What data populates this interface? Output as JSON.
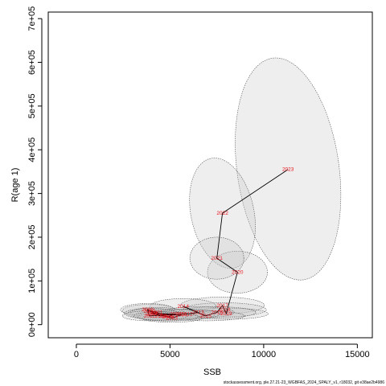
{
  "chart_data": {
    "type": "scatter",
    "xlabel": "SSB",
    "ylabel": "R(age 1)",
    "xlim": [
      -1500,
      15800
    ],
    "ylim": [
      -30000,
      715000
    ],
    "x_ticks": [
      0,
      5000,
      10000,
      15000
    ],
    "x_tick_labels": [
      "0",
      "5000",
      "10000",
      "15000"
    ],
    "y_ticks": [
      0,
      100000,
      200000,
      300000,
      400000,
      500000,
      600000,
      700000
    ],
    "y_tick_labels": [
      "0e+00",
      "1e+05",
      "2e+05",
      "3e+05",
      "4e+05",
      "5e+05",
      "6e+05",
      "7e+05"
    ],
    "points": [
      {
        "year": "2000",
        "ssb": 3900,
        "r": 32000,
        "sd_ssb": 900,
        "sd_r": 9000
      },
      {
        "year": "2001",
        "ssb": 4300,
        "r": 28000,
        "sd_ssb": 900,
        "sd_r": 7000
      },
      {
        "year": "2002",
        "ssb": 4700,
        "r": 20000,
        "sd_ssb": 900,
        "sd_r": 7000
      },
      {
        "year": "2003",
        "ssb": 5100,
        "r": 15000,
        "sd_ssb": 1000,
        "sd_r": 6000
      },
      {
        "year": "2004",
        "ssb": 5600,
        "r": 22000,
        "sd_ssb": 1100,
        "sd_r": 7000
      },
      {
        "year": "2005",
        "ssb": 4100,
        "r": 24000,
        "sd_ssb": 900,
        "sd_r": 7000
      },
      {
        "year": "2006",
        "ssb": 4900,
        "r": 18000,
        "sd_ssb": 1000,
        "sd_r": 6000
      },
      {
        "year": "2007",
        "ssb": 5300,
        "r": 24000,
        "sd_ssb": 1000,
        "sd_r": 7000
      },
      {
        "year": "2008",
        "ssb": 4000,
        "r": 26000,
        "sd_ssb": 900,
        "sd_r": 7000
      },
      {
        "year": "2009",
        "ssb": 4500,
        "r": 20000,
        "sd_ssb": 900,
        "sd_r": 6000
      },
      {
        "year": "2010",
        "ssb": 3800,
        "r": 34000,
        "sd_ssb": 900,
        "sd_r": 9000
      },
      {
        "year": "2011",
        "ssb": 3900,
        "r": 20000,
        "sd_ssb": 900,
        "sd_r": 7000
      },
      {
        "year": "2012",
        "ssb": 5900,
        "r": 24000,
        "sd_ssb": 1100,
        "sd_r": 7000
      },
      {
        "year": "2013",
        "ssb": 6500,
        "r": 28000,
        "sd_ssb": 1200,
        "sd_r": 8000
      },
      {
        "year": "2014",
        "ssb": 5700,
        "r": 42000,
        "sd_ssb": 1100,
        "sd_r": 11000
      },
      {
        "year": "2015",
        "ssb": 6900,
        "r": 20000,
        "sd_ssb": 1300,
        "sd_r": 7000
      },
      {
        "year": "2016",
        "ssb": 7500,
        "r": 28000,
        "sd_ssb": 1300,
        "sd_r": 8000
      },
      {
        "year": "2017",
        "ssb": 7800,
        "r": 44000,
        "sd_ssb": 1400,
        "sd_r": 12000
      },
      {
        "year": "2018",
        "ssb": 7900,
        "r": 34000,
        "sd_ssb": 1400,
        "sd_r": 10000
      },
      {
        "year": "2019",
        "ssb": 8000,
        "r": 25000,
        "sd_ssb": 1400,
        "sd_r": 8000
      },
      {
        "year": "2020",
        "ssb": 8600,
        "r": 120000,
        "sd_ssb": 1000,
        "sd_r": 30000
      },
      {
        "year": "2021",
        "ssb": 7500,
        "r": 152000,
        "sd_ssb": 900,
        "sd_r": 30000
      },
      {
        "year": "2022",
        "ssb": 7800,
        "r": 255000,
        "sd_ssb": 1050,
        "sd_r": 80000
      },
      {
        "year": "2023",
        "ssb": 11300,
        "r": 355000,
        "sd_ssb": 1700,
        "sd_r": 160000
      }
    ],
    "connect_order": [
      "2000",
      "2001",
      "2002",
      "2003",
      "2004",
      "2005",
      "2006",
      "2007",
      "2008",
      "2009",
      "2010",
      "2011",
      "2012",
      "2013",
      "2014",
      "2015",
      "2016",
      "2017",
      "2018",
      "2019",
      "2020",
      "2021",
      "2022",
      "2023"
    ],
    "colors": {
      "ellipse_fill": "#c8c8c8",
      "ellipse_stroke": "#555555",
      "path_line": "#000000",
      "year_label": "#e8141c"
    }
  },
  "footnote": "stockassessment.org, ple.27.21-23_WGBFAS_2024_SPALY_v1, r18032, git e38ae2b4986"
}
